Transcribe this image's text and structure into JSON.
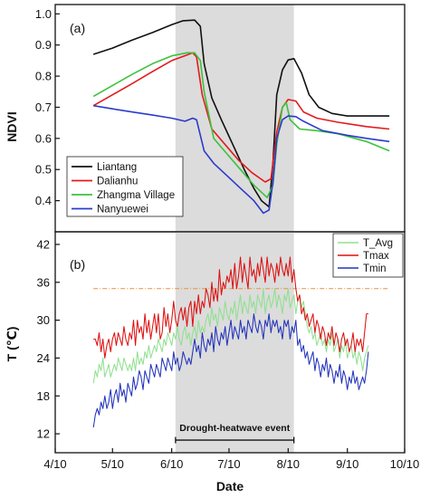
{
  "chart_data": [
    {
      "type": "line",
      "panel_label": "(a)",
      "ylabel": "NDVI",
      "xlim": [
        "2022-04-10",
        "2022-10-10"
      ],
      "ylim": [
        0.3,
        1.03
      ],
      "yticks": [
        0.4,
        0.5,
        0.6,
        0.7,
        0.8,
        0.9,
        1.0
      ],
      "ytick_labels": [
        "0.4",
        "0.5",
        "0.6",
        "0.7",
        "0.8",
        "0.9",
        "1.0"
      ],
      "grid": false,
      "legend_position": "bottom-left",
      "shaded_period": [
        "2022-06-12",
        "2022-08-13"
      ],
      "series": [
        {
          "name": "Liantang",
          "color": "#111111",
          "points": [
            [
              "2022-04-30",
              0.87
            ],
            [
              "2022-05-10",
              0.89
            ],
            [
              "2022-05-20",
              0.915
            ],
            [
              "2022-05-31",
              0.94
            ],
            [
              "2022-06-10",
              0.965
            ],
            [
              "2022-06-16",
              0.978
            ],
            [
              "2022-06-22",
              0.98
            ],
            [
              "2022-06-25",
              0.96
            ],
            [
              "2022-06-27",
              0.84
            ],
            [
              "2022-07-01",
              0.73
            ],
            [
              "2022-07-06",
              0.66
            ],
            [
              "2022-07-12",
              0.58
            ],
            [
              "2022-07-18",
              0.5
            ],
            [
              "2022-07-23",
              0.44
            ],
            [
              "2022-07-27",
              0.4
            ],
            [
              "2022-07-31",
              0.38
            ],
            [
              "2022-08-02",
              0.52
            ],
            [
              "2022-08-04",
              0.74
            ],
            [
              "2022-08-07",
              0.82
            ],
            [
              "2022-08-10",
              0.852
            ],
            [
              "2022-08-13",
              0.856
            ],
            [
              "2022-08-17",
              0.81
            ],
            [
              "2022-08-21",
              0.74
            ],
            [
              "2022-08-26",
              0.7
            ],
            [
              "2022-09-02",
              0.68
            ],
            [
              "2022-09-10",
              0.672
            ],
            [
              "2022-09-20",
              0.672
            ],
            [
              "2022-10-02",
              0.672
            ]
          ]
        },
        {
          "name": "Dalianhu",
          "color": "#e41a1c",
          "points": [
            [
              "2022-04-30",
              0.705
            ],
            [
              "2022-05-10",
              0.74
            ],
            [
              "2022-05-20",
              0.775
            ],
            [
              "2022-05-31",
              0.815
            ],
            [
              "2022-06-10",
              0.85
            ],
            [
              "2022-06-18",
              0.868
            ],
            [
              "2022-06-21",
              0.875
            ],
            [
              "2022-06-23",
              0.862
            ],
            [
              "2022-06-26",
              0.74
            ],
            [
              "2022-07-01",
              0.63
            ],
            [
              "2022-07-08",
              0.58
            ],
            [
              "2022-07-15",
              0.53
            ],
            [
              "2022-07-22",
              0.49
            ],
            [
              "2022-07-29",
              0.46
            ],
            [
              "2022-08-01",
              0.47
            ],
            [
              "2022-08-04",
              0.62
            ],
            [
              "2022-08-07",
              0.7
            ],
            [
              "2022-08-10",
              0.725
            ],
            [
              "2022-08-14",
              0.72
            ],
            [
              "2022-08-18",
              0.685
            ],
            [
              "2022-08-25",
              0.665
            ],
            [
              "2022-09-05",
              0.652
            ],
            [
              "2022-09-20",
              0.638
            ],
            [
              "2022-10-02",
              0.63
            ]
          ]
        },
        {
          "name": "Zhangma Village",
          "color": "#3cc23c",
          "points": [
            [
              "2022-04-30",
              0.735
            ],
            [
              "2022-05-10",
              0.77
            ],
            [
              "2022-05-20",
              0.805
            ],
            [
              "2022-05-31",
              0.84
            ],
            [
              "2022-06-10",
              0.865
            ],
            [
              "2022-06-18",
              0.875
            ],
            [
              "2022-06-22",
              0.875
            ],
            [
              "2022-06-25",
              0.85
            ],
            [
              "2022-06-27",
              0.75
            ],
            [
              "2022-07-02",
              0.6
            ],
            [
              "2022-07-09",
              0.55
            ],
            [
              "2022-07-16",
              0.5
            ],
            [
              "2022-07-23",
              0.45
            ],
            [
              "2022-07-30",
              0.41
            ],
            [
              "2022-08-02",
              0.45
            ],
            [
              "2022-08-04",
              0.58
            ],
            [
              "2022-08-07",
              0.7
            ],
            [
              "2022-08-09",
              0.715
            ],
            [
              "2022-08-11",
              0.66
            ],
            [
              "2022-08-16",
              0.63
            ],
            [
              "2022-08-25",
              0.625
            ],
            [
              "2022-09-05",
              0.615
            ],
            [
              "2022-09-20",
              0.59
            ],
            [
              "2022-10-02",
              0.56
            ]
          ]
        },
        {
          "name": "Nanyuewei",
          "color": "#2b3bcc",
          "points": [
            [
              "2022-04-30",
              0.705
            ],
            [
              "2022-05-10",
              0.695
            ],
            [
              "2022-05-20",
              0.685
            ],
            [
              "2022-05-31",
              0.675
            ],
            [
              "2022-06-10",
              0.665
            ],
            [
              "2022-06-17",
              0.655
            ],
            [
              "2022-06-21",
              0.665
            ],
            [
              "2022-06-23",
              0.66
            ],
            [
              "2022-06-27",
              0.56
            ],
            [
              "2022-07-02",
              0.52
            ],
            [
              "2022-07-09",
              0.48
            ],
            [
              "2022-07-16",
              0.44
            ],
            [
              "2022-07-23",
              0.4
            ],
            [
              "2022-07-28",
              0.36
            ],
            [
              "2022-07-31",
              0.37
            ],
            [
              "2022-08-02",
              0.46
            ],
            [
              "2022-08-04",
              0.6
            ],
            [
              "2022-08-07",
              0.66
            ],
            [
              "2022-08-10",
              0.672
            ],
            [
              "2022-08-14",
              0.67
            ],
            [
              "2022-08-18",
              0.655
            ],
            [
              "2022-08-28",
              0.625
            ],
            [
              "2022-09-10",
              0.61
            ],
            [
              "2022-09-20",
              0.6
            ],
            [
              "2022-10-02",
              0.59
            ]
          ]
        }
      ]
    },
    {
      "type": "line",
      "panel_label": "(b)",
      "ylabel": "T (℃)",
      "xlabel": "Date",
      "xlim": [
        "2022-04-10",
        "2022-10-10"
      ],
      "xtick_labels": [
        "4/10",
        "5/10",
        "6/10",
        "7/10",
        "8/10",
        "9/10",
        "10/10"
      ],
      "xticks": [
        "2022-04-10",
        "2022-05-10",
        "2022-06-10",
        "2022-07-10",
        "2022-08-10",
        "2022-09-10",
        "2022-10-10"
      ],
      "ylim": [
        9,
        44
      ],
      "yticks": [
        12,
        18,
        24,
        30,
        36,
        42
      ],
      "ytick_labels": [
        "12",
        "18",
        "24",
        "30",
        "36",
        "42"
      ],
      "grid": false,
      "legend_position": "top-right",
      "shaded_period": [
        "2022-06-12",
        "2022-08-13"
      ],
      "reference_line": {
        "value": 35,
        "color": "#e8913a",
        "style": "dash-dot"
      },
      "annotation": {
        "text": "Drought-heatwave event",
        "range": [
          "2022-06-12",
          "2022-08-13"
        ],
        "y": 11
      },
      "series": [
        {
          "name": "T_Avg",
          "color": "#90e090",
          "x_start": "2022-04-30",
          "values": [
            20,
            22,
            21,
            23,
            22,
            24,
            21,
            22,
            23,
            21,
            22,
            23,
            22,
            24,
            23,
            22,
            24,
            23,
            22,
            23,
            22,
            24,
            22,
            25,
            23,
            24,
            23,
            25,
            24,
            26,
            24,
            25,
            26,
            25,
            27,
            26,
            25,
            27,
            26,
            28,
            27,
            26,
            28,
            27,
            29,
            27,
            26,
            28,
            29,
            27,
            28,
            26,
            28,
            29,
            27,
            30,
            28,
            29,
            28,
            30,
            31,
            29,
            32,
            30,
            31,
            29,
            32,
            31,
            30,
            33,
            31,
            30,
            32,
            31,
            33,
            30,
            32,
            34,
            31,
            33,
            32,
            31,
            34,
            32,
            33,
            31,
            34,
            33,
            32,
            35,
            31,
            33,
            34,
            32,
            33,
            35,
            32,
            34,
            33,
            31,
            34,
            33,
            35,
            32,
            33,
            34,
            31,
            33,
            34,
            32,
            33,
            31,
            29,
            28,
            29,
            27,
            28,
            26,
            27,
            28,
            26,
            27,
            25,
            27,
            26,
            28,
            25,
            26,
            27,
            24,
            26,
            25,
            27,
            24,
            25,
            26,
            24,
            25,
            23,
            25,
            24,
            22,
            24,
            25,
            26
          ]
        },
        {
          "name": "Tmax",
          "color": "#dd1111",
          "x_start": "2022-04-30",
          "values": [
            27,
            27,
            26,
            28,
            25,
            27,
            24,
            26,
            27,
            25,
            27,
            28,
            26,
            28,
            27,
            26,
            29,
            27,
            26,
            28,
            27,
            30,
            26,
            30,
            28,
            29,
            27,
            31,
            28,
            30,
            27,
            29,
            31,
            28,
            31,
            27,
            28,
            32,
            29,
            31,
            28,
            30,
            33,
            30,
            29,
            31,
            32,
            30,
            32,
            29,
            32,
            33,
            29,
            33,
            31,
            34,
            31,
            33,
            32,
            35,
            34,
            32,
            36,
            33,
            35,
            33,
            38,
            34,
            36,
            35,
            37,
            36,
            38,
            35,
            39,
            35,
            37,
            40,
            36,
            39,
            37,
            35,
            40,
            37,
            38,
            36,
            39,
            37,
            40,
            38,
            36,
            40,
            37,
            39,
            38,
            36,
            39,
            37,
            40,
            38,
            37,
            39,
            37,
            40,
            36,
            38,
            35,
            33,
            34,
            31,
            32,
            30,
            31,
            29,
            30,
            31,
            28,
            30,
            29,
            27,
            29,
            28,
            26,
            28,
            27,
            29,
            26,
            28,
            27,
            25,
            27,
            28,
            26,
            27,
            25,
            26,
            28,
            25,
            27,
            26,
            27,
            25,
            28,
            31,
            31
          ]
        },
        {
          "name": "Tmin",
          "color": "#2233bb",
          "x_start": "2022-04-30",
          "values": [
            13,
            15,
            16,
            15,
            17,
            16,
            18,
            16,
            17,
            19,
            16,
            18,
            19,
            17,
            20,
            18,
            19,
            17,
            20,
            19,
            18,
            21,
            19,
            20,
            22,
            21,
            19,
            22,
            21,
            20,
            23,
            22,
            21,
            23,
            22,
            21,
            24,
            23,
            22,
            24,
            23,
            22,
            25,
            23,
            24,
            22,
            23,
            25,
            24,
            23,
            24,
            23,
            25,
            27,
            25,
            26,
            24,
            28,
            26,
            25,
            27,
            26,
            28,
            25,
            29,
            27,
            26,
            28,
            27,
            29,
            26,
            28,
            30,
            27,
            29,
            28,
            27,
            30,
            28,
            29,
            27,
            30,
            29,
            28,
            31,
            29,
            28,
            30,
            29,
            27,
            30,
            29,
            31,
            28,
            30,
            29,
            30,
            28,
            29,
            27,
            30,
            29,
            30,
            27,
            29,
            28,
            30,
            26,
            27,
            25,
            26,
            24,
            25,
            23,
            24,
            25,
            22,
            24,
            23,
            21,
            23,
            22,
            24,
            21,
            23,
            22,
            20,
            22,
            21,
            23,
            20,
            22,
            21,
            19,
            21,
            20,
            22,
            20,
            21,
            19,
            20,
            21,
            20,
            22,
            25
          ]
        }
      ]
    }
  ]
}
